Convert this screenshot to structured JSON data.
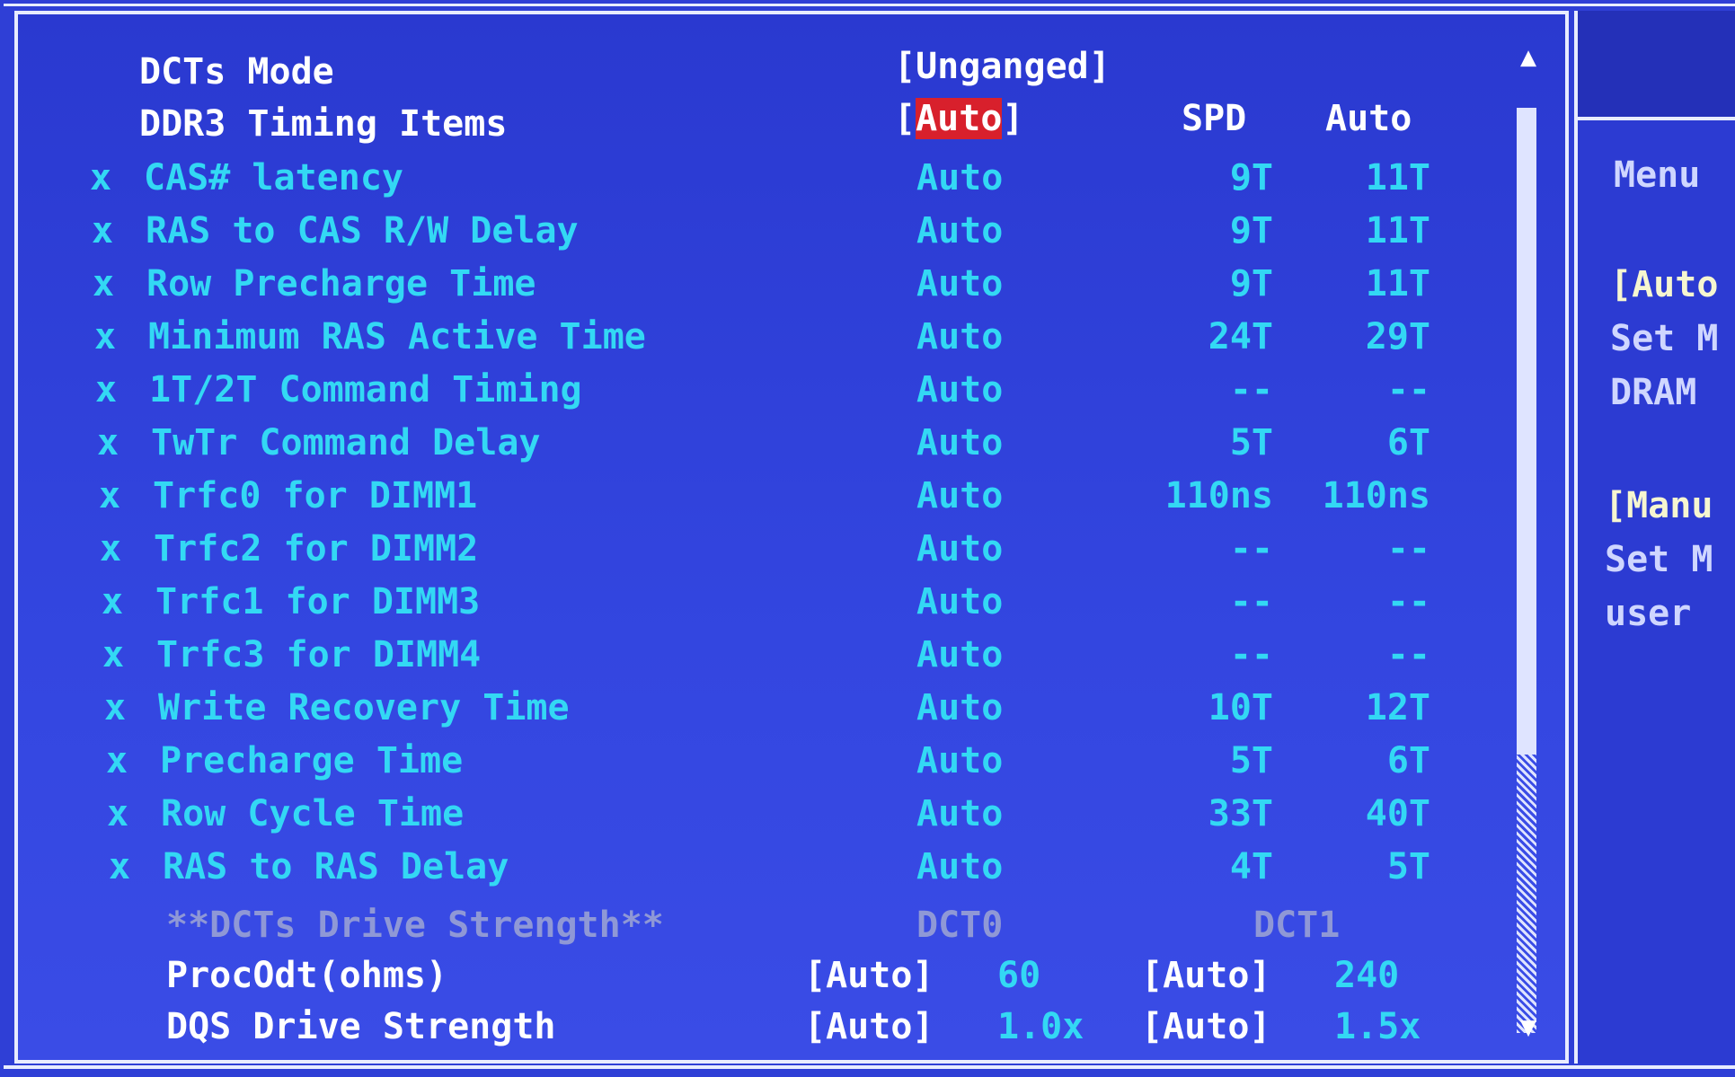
{
  "header_rows": [
    {
      "label": "DCTs Mode",
      "value": "[Unganged]"
    },
    {
      "label": "DDR3 Timing Items",
      "value_open": "[",
      "value": "Auto",
      "value_close": "]",
      "col_spd": "SPD",
      "col_auto": "Auto"
    }
  ],
  "timing_rows": [
    {
      "mark": "x",
      "label": "CAS# latency",
      "value": "Auto",
      "spd": "9T",
      "auto": "11T"
    },
    {
      "mark": "x",
      "label": "RAS to CAS R/W Delay",
      "value": "Auto",
      "spd": "9T",
      "auto": "11T"
    },
    {
      "mark": "x",
      "label": "Row Precharge Time",
      "value": "Auto",
      "spd": "9T",
      "auto": "11T"
    },
    {
      "mark": "x",
      "label": "Minimum RAS Active Time",
      "value": "Auto",
      "spd": "24T",
      "auto": "29T"
    },
    {
      "mark": "x",
      "label": "1T/2T Command Timing",
      "value": "Auto",
      "spd": "--",
      "auto": "--"
    },
    {
      "mark": "x",
      "label": "TwTr Command Delay",
      "value": "Auto",
      "spd": "5T",
      "auto": "6T"
    },
    {
      "mark": "x",
      "label": "Trfc0 for DIMM1",
      "value": "Auto",
      "spd": "110ns",
      "auto": "110ns"
    },
    {
      "mark": "x",
      "label": "Trfc2 for DIMM2",
      "value": "Auto",
      "spd": "--",
      "auto": "--"
    },
    {
      "mark": "x",
      "label": "Trfc1 for DIMM3",
      "value": "Auto",
      "spd": "--",
      "auto": "--"
    },
    {
      "mark": "x",
      "label": "Trfc3 for DIMM4",
      "value": "Auto",
      "spd": "--",
      "auto": "--"
    },
    {
      "mark": "x",
      "label": "Write Recovery Time",
      "value": "Auto",
      "spd": "10T",
      "auto": "12T"
    },
    {
      "mark": "x",
      "label": "Precharge Time",
      "value": "Auto",
      "spd": "5T",
      "auto": "6T"
    },
    {
      "mark": "x",
      "label": "Row Cycle Time",
      "value": "Auto",
      "spd": "33T",
      "auto": "40T"
    },
    {
      "mark": "x",
      "label": "RAS to RAS Delay",
      "value": "Auto",
      "spd": "4T",
      "auto": "5T"
    }
  ],
  "drive_strength": {
    "heading": "**DCTs Drive Strength**",
    "dct0": "DCT0",
    "dct1": "DCT1",
    "rows": [
      {
        "label": "ProcOdt(ohms)",
        "dct0_mode": "[Auto]",
        "dct0_value": "60",
        "dct1_mode": "[Auto]",
        "dct1_value": "240"
      },
      {
        "label": "DQS Drive Strength",
        "dct0_mode": "[Auto]",
        "dct0_value": "1.0x",
        "dct1_mode": "[Auto]",
        "dct1_value": "1.5x"
      }
    ]
  },
  "help_panel": {
    "lines": [
      "Menu",
      "[Auto",
      "Set M",
      "DRAM",
      "[Manu",
      "Set M",
      "user"
    ]
  },
  "scroll": {
    "up_icon": "▲",
    "down_icon": "▼",
    "position_fraction": 0.0
  },
  "colors": {
    "background": "#2f3fd6",
    "active_text": "#ffffff",
    "disabled_text": "#33d8f4",
    "selected_bg": "#d8202c"
  }
}
